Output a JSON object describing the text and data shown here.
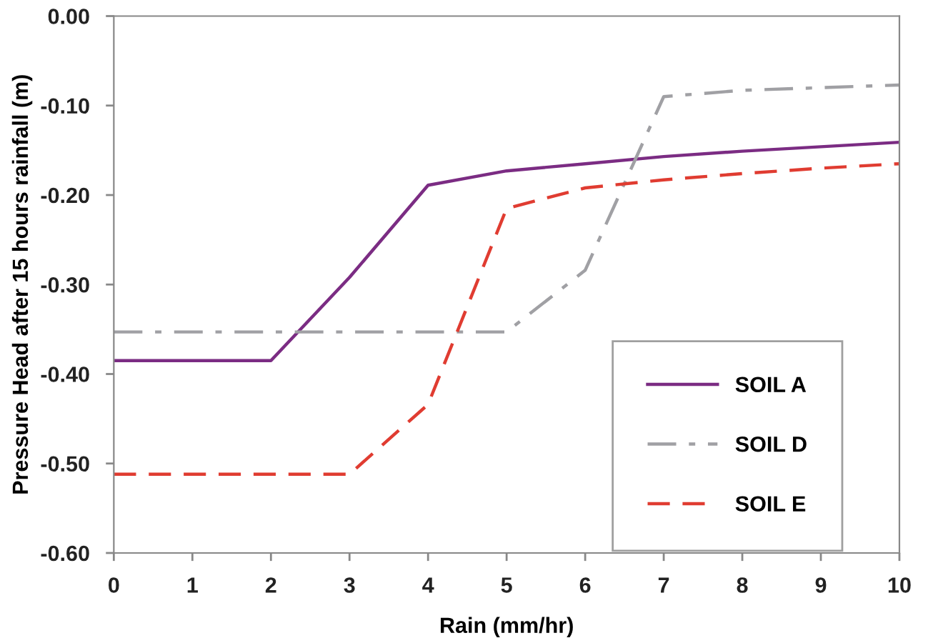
{
  "chart_data": {
    "type": "line",
    "xlabel": "Rain (mm/hr)",
    "ylabel": "Pressure Head after 15 hours rainfall (m)",
    "x": [
      0,
      1,
      2,
      3,
      4,
      5,
      6,
      7,
      8,
      9,
      10
    ],
    "xlim": [
      0,
      10
    ],
    "xticks": [
      0,
      1,
      2,
      3,
      4,
      5,
      6,
      7,
      8,
      9,
      10
    ],
    "ylim": [
      -0.6,
      0.0
    ],
    "yticks": [
      {
        "value": -0.6,
        "label": "-0.60"
      },
      {
        "value": -0.5,
        "label": "-0.50"
      },
      {
        "value": -0.4,
        "label": "-0.40"
      },
      {
        "value": -0.3,
        "label": "-0.30"
      },
      {
        "value": -0.2,
        "label": "-0.20"
      },
      {
        "value": -0.1,
        "label": "-0.10"
      },
      {
        "value": 0.0,
        "label": "0.00"
      }
    ],
    "grid": false,
    "legend": "bottom right",
    "marker": "none",
    "series": [
      {
        "name": "SOIL A",
        "color": "#7b2c83",
        "line_style": "solid",
        "values": [
          -0.385,
          -0.385,
          -0.385,
          -0.292,
          -0.189,
          -0.173,
          -0.165,
          -0.157,
          -0.151,
          -0.146,
          -0.141
        ]
      },
      {
        "name": "SOIL D",
        "color": "#a0a0a4",
        "line_style": "dashdot",
        "values": [
          -0.353,
          -0.353,
          -0.353,
          -0.353,
          -0.353,
          -0.353,
          -0.284,
          -0.09,
          -0.083,
          -0.08,
          -0.077
        ]
      },
      {
        "name": "SOIL E",
        "color": "#e03c31",
        "line_style": "dashed",
        "values": [
          -0.512,
          -0.512,
          -0.512,
          -0.512,
          -0.434,
          -0.215,
          -0.192,
          -0.183,
          -0.176,
          -0.17,
          -0.165
        ]
      }
    ]
  }
}
